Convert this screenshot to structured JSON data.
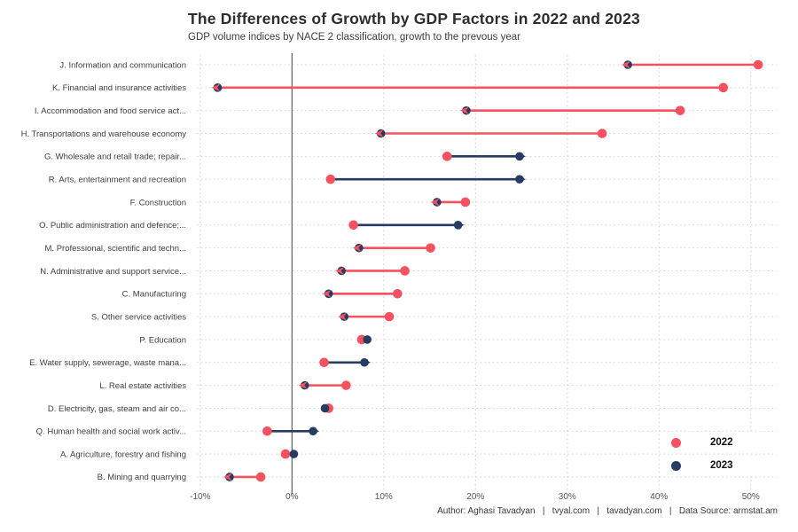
{
  "page": {
    "background": "#ffffff"
  },
  "header": {
    "title": "The Differences of Growth by GDP Factors in 2022 and 2023",
    "subtitle": "GDP volume indices by NACE 2 classification, growth to the prevous year"
  },
  "legend": {
    "items": [
      {
        "label": "2022",
        "color": "#f6515f"
      },
      {
        "label": "2023",
        "color": "#263c63"
      }
    ]
  },
  "footer": {
    "text": "Author: Aghasi Tavadyan   |   tvyal.com   |   tavadyan.com   |   Data Source: armstat.am"
  },
  "chart_data": {
    "type": "scatter",
    "variant": "dumbbell-arrow",
    "title": "The Differences of Growth by GDP Factors in 2022 and 2023",
    "subtitle": "GDP volume indices by NACE 2 classification, growth to the prevous year",
    "xlabel": "",
    "ylabel": "",
    "x_ticks": [
      "-10%",
      "0%",
      "10%",
      "20%",
      "30%",
      "40%",
      "50%"
    ],
    "x_tick_values": [
      -10,
      0,
      10,
      20,
      30,
      40,
      50
    ],
    "xlim": [
      -13,
      53
    ],
    "grid": "dotted",
    "legend_position": "inside-bottom-right",
    "arrow_rule": "arrow drawn from 2022 value to 2023 value; navy when growth increased, pink when it decreased",
    "categories": [
      "J. Information and communication",
      "K. Financial and insurance activities",
      "I. Accommodation and food service act...",
      "H. Transportations and warehouse economy",
      "G. Wholesale and retail trade; repair...",
      "R. Arts, entertainment and recreation",
      "F. Construction",
      "O. Public administration and defence;...",
      "M. Professional, scientific and techn...",
      "N. Administrative and support service...",
      "C. Manufacturing",
      "S. Other service activities",
      "P. Education",
      "E. Water supply, sewerage, waste mana...",
      "L. Real estate activities",
      "D. Electricity, gas, steam and air co...",
      "Q. Human health and social work activ...",
      "A. Agriculture, forestry and fishing",
      "B. Mining and quarrying"
    ],
    "series": [
      {
        "name": "2022",
        "color": "#f6515f",
        "values": [
          50.8,
          47.0,
          42.3,
          33.8,
          16.9,
          4.2,
          18.9,
          6.7,
          15.1,
          12.3,
          11.5,
          10.6,
          7.6,
          3.5,
          5.9,
          4.0,
          -2.7,
          -0.7,
          -3.4
        ]
      },
      {
        "name": "2023",
        "color": "#263c63",
        "values": [
          36.6,
          -8.1,
          19.0,
          9.7,
          24.8,
          24.8,
          15.8,
          18.1,
          7.3,
          5.4,
          4.0,
          5.7,
          8.2,
          7.9,
          1.4,
          3.6,
          2.3,
          0.2,
          -6.8
        ]
      }
    ]
  }
}
